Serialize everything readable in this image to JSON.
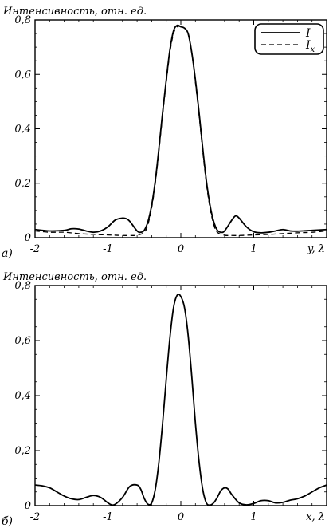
{
  "chart_data": [
    {
      "type": "line",
      "panel_label": "а)",
      "ylabel": "Интенсивность, отн. ед.",
      "xlabel": "y, λ",
      "xlim": [
        -2,
        2
      ],
      "ylim": [
        0,
        0.8
      ],
      "x_ticks": [
        "-2",
        "-1",
        "0",
        "1"
      ],
      "y_ticks": [
        "0",
        "0,2",
        "0,4",
        "0,6",
        "0,8"
      ],
      "legend": {
        "position": "top-right",
        "entries": [
          "I",
          "Ix"
        ]
      },
      "series": [
        {
          "name": "I",
          "style": "solid",
          "color": "#000000",
          "x": [
            -2.0,
            -1.8,
            -1.6,
            -1.5,
            -1.4,
            -1.3,
            -1.2,
            -1.1,
            -1.0,
            -0.9,
            -0.8,
            -0.75,
            -0.7,
            -0.6,
            -0.55,
            -0.5,
            -0.45,
            -0.4,
            -0.35,
            -0.3,
            -0.25,
            -0.2,
            -0.15,
            -0.1,
            -0.05,
            0.0,
            0.05,
            0.1,
            0.15,
            0.2,
            0.25,
            0.3,
            0.35,
            0.4,
            0.45,
            0.5,
            0.55,
            0.6,
            0.7,
            0.75,
            0.8,
            0.9,
            1.0,
            1.1,
            1.2,
            1.3,
            1.4,
            1.5,
            1.6,
            1.8,
            2.0
          ],
          "y": [
            0.03,
            0.025,
            0.027,
            0.033,
            0.032,
            0.025,
            0.02,
            0.025,
            0.04,
            0.065,
            0.072,
            0.07,
            0.06,
            0.025,
            0.02,
            0.028,
            0.06,
            0.12,
            0.21,
            0.33,
            0.46,
            0.58,
            0.69,
            0.76,
            0.78,
            0.775,
            0.77,
            0.75,
            0.68,
            0.58,
            0.46,
            0.33,
            0.21,
            0.12,
            0.06,
            0.028,
            0.02,
            0.025,
            0.065,
            0.08,
            0.072,
            0.04,
            0.022,
            0.018,
            0.02,
            0.025,
            0.03,
            0.025,
            0.024,
            0.027,
            0.03
          ]
        },
        {
          "name": "Ix",
          "style": "dashed",
          "color": "#000000",
          "x": [
            -2.0,
            -1.8,
            -1.6,
            -1.4,
            -1.2,
            -1.0,
            -0.9,
            -0.8,
            -0.7,
            -0.6,
            -0.5,
            -0.45,
            -0.4,
            -0.35,
            -0.3,
            -0.25,
            -0.2,
            -0.15,
            -0.1,
            -0.05,
            0.0,
            0.05,
            0.1,
            0.15,
            0.2,
            0.25,
            0.3,
            0.35,
            0.4,
            0.45,
            0.5,
            0.6,
            0.7,
            0.8,
            0.9,
            1.0,
            1.2,
            1.4,
            1.6,
            1.8,
            2.0
          ],
          "y": [
            0.025,
            0.02,
            0.02,
            0.015,
            0.012,
            0.01,
            0.009,
            0.008,
            0.008,
            0.009,
            0.02,
            0.05,
            0.11,
            0.2,
            0.32,
            0.45,
            0.57,
            0.68,
            0.75,
            0.775,
            0.775,
            0.77,
            0.75,
            0.68,
            0.57,
            0.45,
            0.32,
            0.2,
            0.11,
            0.05,
            0.02,
            0.009,
            0.008,
            0.008,
            0.009,
            0.01,
            0.012,
            0.015,
            0.018,
            0.02,
            0.025
          ]
        }
      ]
    },
    {
      "type": "line",
      "panel_label": "б)",
      "ylabel": "Интенсивность, отн. ед.",
      "xlabel": "x, λ",
      "xlim": [
        -2,
        2
      ],
      "ylim": [
        0,
        0.8
      ],
      "x_ticks": [
        "-2",
        "-1",
        "0",
        "1"
      ],
      "y_ticks": [
        "0",
        "0,2",
        "0,4",
        "0,6",
        "0,8"
      ],
      "series": [
        {
          "name": "I",
          "style": "solid",
          "color": "#000000",
          "x": [
            -2.0,
            -1.9,
            -1.8,
            -1.7,
            -1.6,
            -1.5,
            -1.4,
            -1.3,
            -1.2,
            -1.1,
            -1.0,
            -0.95,
            -0.9,
            -0.8,
            -0.7,
            -0.6,
            -0.55,
            -0.5,
            -0.45,
            -0.4,
            -0.35,
            -0.3,
            -0.25,
            -0.2,
            -0.15,
            -0.1,
            -0.05,
            0.0,
            0.05,
            0.1,
            0.15,
            0.2,
            0.25,
            0.3,
            0.35,
            0.4,
            0.45,
            0.5,
            0.55,
            0.6,
            0.65,
            0.7,
            0.8,
            0.9,
            1.0,
            1.1,
            1.2,
            1.3,
            1.4,
            1.5,
            1.6,
            1.7,
            1.8,
            1.9,
            2.0
          ],
          "y": [
            0.075,
            0.072,
            0.065,
            0.05,
            0.035,
            0.025,
            0.022,
            0.03,
            0.037,
            0.03,
            0.01,
            0.003,
            0.005,
            0.03,
            0.07,
            0.075,
            0.06,
            0.025,
            0.005,
            0.01,
            0.06,
            0.16,
            0.3,
            0.46,
            0.61,
            0.72,
            0.765,
            0.76,
            0.72,
            0.62,
            0.47,
            0.3,
            0.16,
            0.06,
            0.01,
            0.002,
            0.01,
            0.03,
            0.055,
            0.065,
            0.06,
            0.04,
            0.01,
            0.003,
            0.008,
            0.018,
            0.018,
            0.01,
            0.012,
            0.02,
            0.025,
            0.035,
            0.05,
            0.065,
            0.075
          ]
        }
      ]
    }
  ]
}
